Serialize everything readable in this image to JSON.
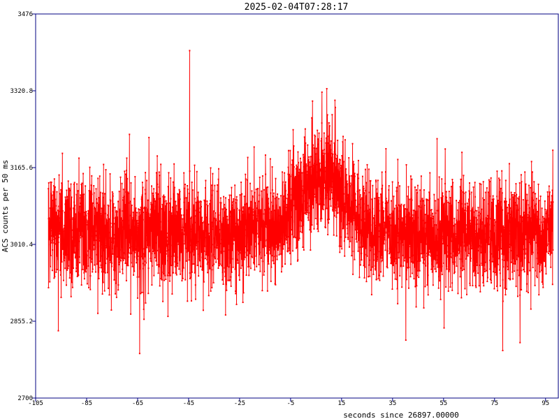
{
  "chart_data": {
    "type": "line",
    "title": "2025-02-04T07:28:17",
    "xlabel": "seconds since 26897.00000",
    "ylabel": "ACS counts per 50 ms",
    "xlim": [
      -105,
      100
    ],
    "ylim": [
      2700,
      3476
    ],
    "xticks": [
      -105,
      -85,
      -65,
      -45,
      -25,
      -5,
      15,
      35,
      55,
      75,
      95
    ],
    "xtick_labels": [
      "-105",
      "-85",
      "-65",
      "-45",
      "-25",
      "-5",
      "15",
      "35",
      "55",
      "75",
      "95"
    ],
    "yticks": [
      2700,
      2855.2,
      3010.4,
      3165.6,
      3320.8,
      3476
    ],
    "ytick_labels": [
      "2700",
      "2855.2",
      "3010.4",
      "3165.6",
      "3320.8",
      "3476"
    ],
    "grid": false,
    "legend": "none",
    "line_color": "#ff0000",
    "frame_color": "#000080",
    "series": [
      {
        "x_start": -100,
        "x_step": 0.05,
        "count": 3960,
        "baseline": 3033,
        "peak_center": 7,
        "peak_height": 110,
        "peak_width": 9,
        "noise_sigma": 55,
        "notable_points": [
          {
            "x": -44.6,
            "y": 3402
          },
          {
            "x": 9.2,
            "y": 3325
          },
          {
            "x": 7.3,
            "y": 3318
          },
          {
            "x": 3.6,
            "y": 3300
          },
          {
            "x": -64.2,
            "y": 2790
          },
          {
            "x": 40.2,
            "y": 2817
          },
          {
            "x": 78.2,
            "y": 2796
          },
          {
            "x": 85.0,
            "y": 2812
          },
          {
            "x": -96.1,
            "y": 2836
          }
        ]
      }
    ]
  }
}
